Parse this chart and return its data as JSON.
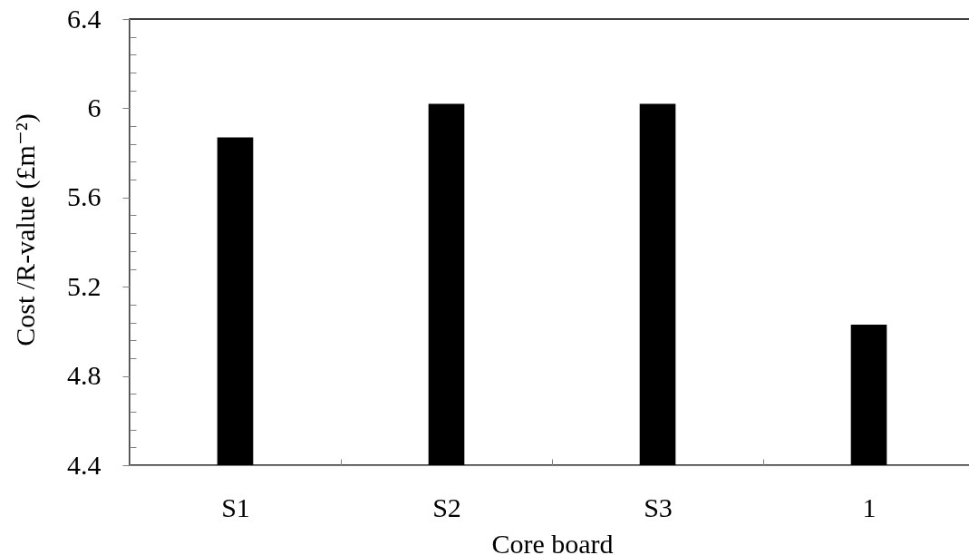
{
  "chart_data": {
    "type": "bar",
    "xlabel": "Core board",
    "ylabel": "Cost /R-value (£m⁻²)",
    "categories": [
      "S1",
      "S2",
      "S3",
      "1"
    ],
    "values": [
      5.87,
      6.02,
      6.02,
      5.03
    ],
    "color": "#000000",
    "ylim": [
      4.4,
      6.4
    ],
    "yticks": [
      4.4,
      {
        "value": 4.48,
        "label": null
      },
      {
        "value": 4.56,
        "label": null
      },
      {
        "value": 4.64,
        "label": null
      },
      {
        "value": 4.72,
        "label": null
      },
      4.8,
      {
        "value": 4.88,
        "label": null
      },
      {
        "value": 4.96,
        "label": null
      },
      {
        "value": 5.04,
        "label": null
      },
      {
        "value": 5.12,
        "label": null
      },
      5.2,
      {
        "value": 5.28,
        "label": null
      },
      {
        "value": 5.36,
        "label": null
      },
      {
        "value": 5.44,
        "label": null
      },
      {
        "value": 5.52,
        "label": null
      },
      5.6,
      {
        "value": 5.68,
        "label": null
      },
      {
        "value": 5.76,
        "label": null
      },
      {
        "value": 5.84,
        "label": null
      },
      {
        "value": 5.92,
        "label": null
      },
      6,
      {
        "value": 6.08,
        "label": null
      },
      {
        "value": 6.16,
        "label": null
      },
      {
        "value": 6.24,
        "label": null
      },
      {
        "value": 6.32,
        "label": null
      },
      6.4
    ]
  }
}
